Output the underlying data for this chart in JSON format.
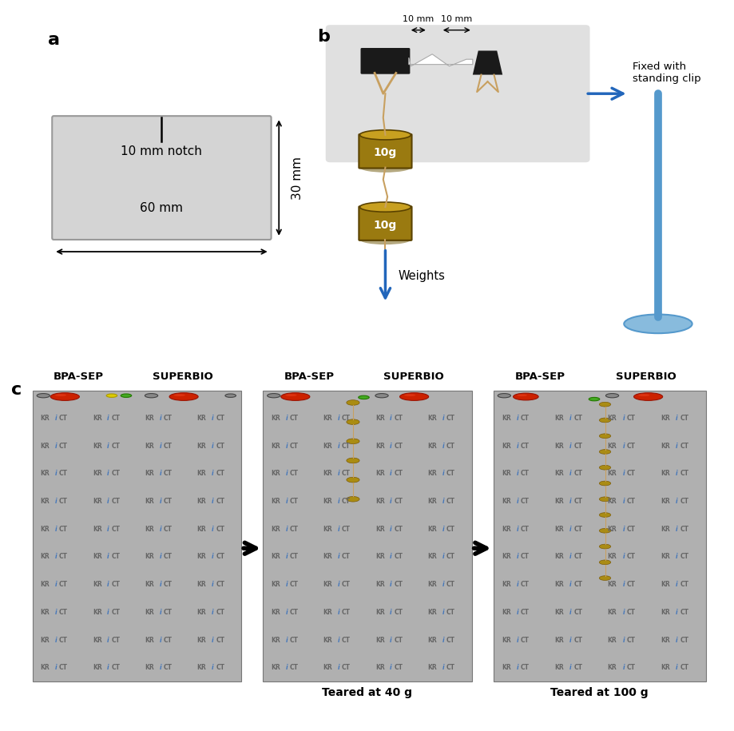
{
  "panel_a_label": "a",
  "panel_b_label": "b",
  "panel_c_label": "c",
  "notch_text": "10 mm notch",
  "width_text": "60 mm",
  "height_text": "30 mm",
  "dim_10mm_left": "10 mm",
  "dim_10mm_right": "10 mm",
  "fixed_text": "Fixed with\nstanding clip",
  "weights_text": "Weights",
  "weight_label": "10g",
  "teared_40g": "Teared at 40 g",
  "teared_100g": "Teared at 100 g",
  "bg_color": "#ffffff",
  "rect_fill": "#d4d4d4",
  "rect_edge": "#999999",
  "gold_color": "#9a7a10",
  "gold_top": "#c8a020",
  "clip_dark": "#1a1a1a",
  "blue_pole": "#5599cc",
  "blue_base": "#88bbdd",
  "arrow_blue": "#2266bb",
  "krict_bg": "#b0b0b0",
  "krict_text_dark": "#666666",
  "krict_text_blue": "#4477bb",
  "rope_color": "#c8a060",
  "shadow_color": "#888888"
}
